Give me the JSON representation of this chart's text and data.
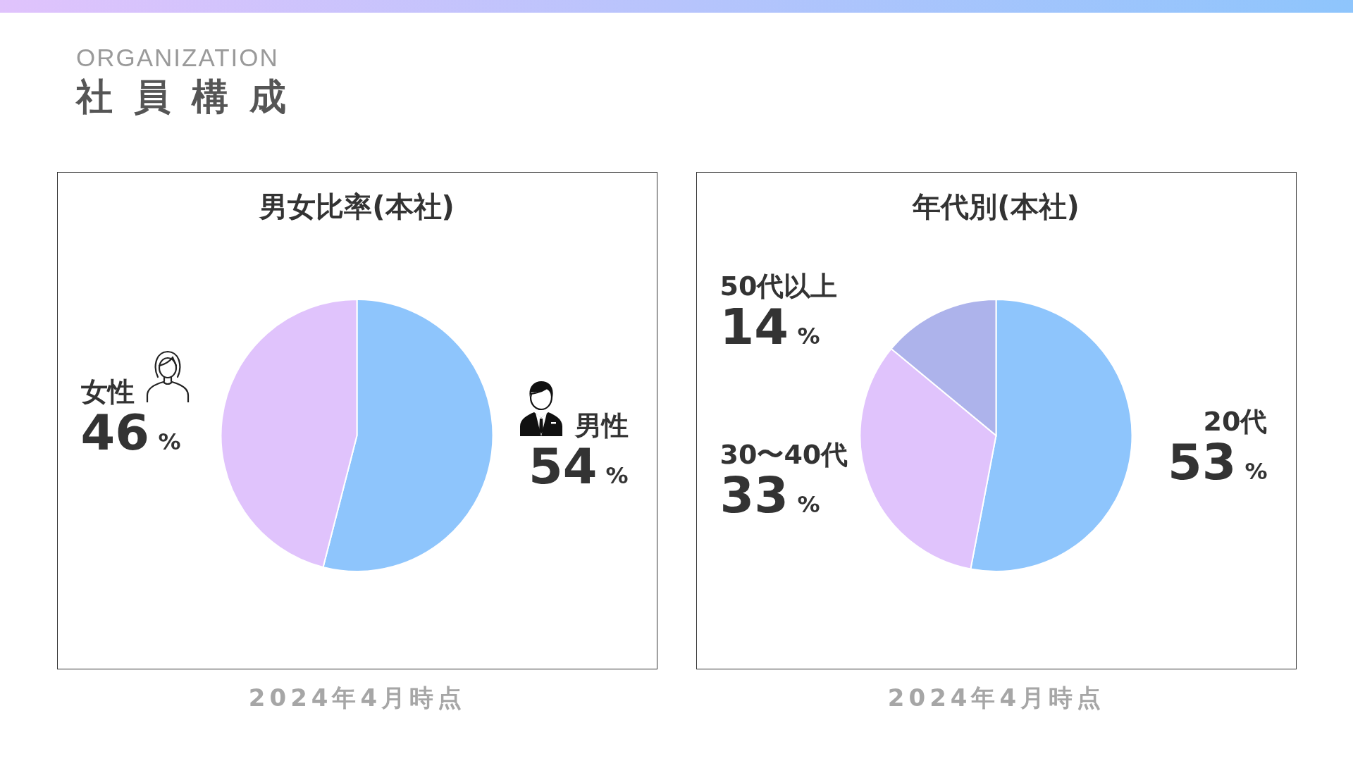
{
  "chart_data": [
    {
      "type": "other",
      "title": "社員構成",
      "subtitle": "ORGANIZATION"
    },
    {
      "type": "pie",
      "title": "男女比率(本社)",
      "categories": [
        "男性",
        "女性"
      ],
      "values": [
        54,
        46
      ],
      "colors": [
        "#8ec5fc",
        "#e0c3fc"
      ],
      "value_labels": [
        "54%",
        "46%"
      ],
      "annotations": [
        "2024年4月時点"
      ]
    },
    {
      "type": "pie",
      "title": "年代別(本社)",
      "categories": [
        "20代",
        "30〜40代",
        "50代以上"
      ],
      "values": [
        53,
        33,
        14
      ],
      "colors": [
        "#8ec5fc",
        "#e0c3fc",
        "#adb3eb"
      ],
      "value_labels": [
        "53%",
        "33%",
        "14%"
      ],
      "annotations": [
        "2024年4月時点"
      ]
    }
  ]
}
